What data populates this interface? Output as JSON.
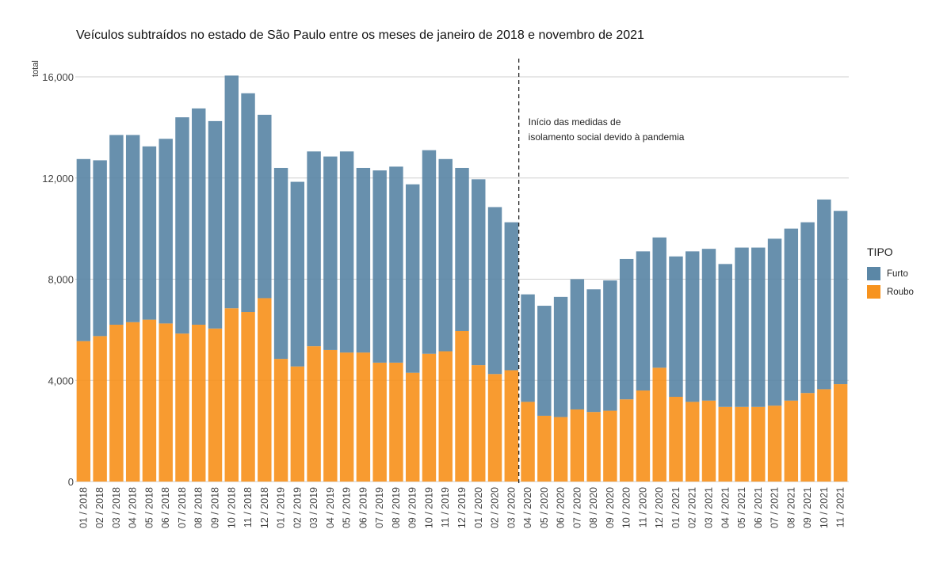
{
  "chart_data": {
    "type": "bar",
    "stacked": true,
    "title": "Veículos subtraídos no estado de São Paulo entre os meses de janeiro de 2018 e novembro de 2021",
    "xlabel": "",
    "ylabel": "total",
    "ylim": [
      0,
      16000
    ],
    "yticks": [
      0,
      4000,
      8000,
      12000,
      16000
    ],
    "ytick_labels": [
      "0",
      "4,000",
      "8,000",
      "12,000",
      "16,000"
    ],
    "grid": "horizontal",
    "legend": {
      "title": "TIPO",
      "placement": "right"
    },
    "categories": [
      "01 / 2018",
      "02 / 2018",
      "03 / 2018",
      "04 / 2018",
      "05 / 2018",
      "06 / 2018",
      "07 / 2018",
      "08 / 2018",
      "09 / 2018",
      "10 / 2018",
      "11 / 2018",
      "12 / 2018",
      "01 / 2019",
      "02 / 2019",
      "03 / 2019",
      "04 / 2019",
      "05 / 2019",
      "06 / 2019",
      "07 / 2019",
      "08 / 2019",
      "09 / 2019",
      "10 / 2019",
      "11 / 2019",
      "12 / 2019",
      "01 / 2020",
      "02 / 2020",
      "03 / 2020",
      "04 / 2020",
      "05 / 2020",
      "06 / 2020",
      "07 / 2020",
      "08 / 2020",
      "09 / 2020",
      "10 / 2020",
      "11 / 2020",
      "12 / 2020",
      "01 / 2021",
      "02 / 2021",
      "03 / 2021",
      "04 / 2021",
      "05 / 2021",
      "06 / 2021",
      "07 / 2021",
      "08 / 2021",
      "09 / 2021",
      "10 / 2021",
      "11 / 2021"
    ],
    "series": [
      {
        "name": "Roubo",
        "color": "#f7931e",
        "values": [
          5550,
          5750,
          6200,
          6300,
          6400,
          6250,
          5850,
          6200,
          6050,
          6850,
          6700,
          7250,
          4850,
          4550,
          5350,
          5200,
          5100,
          5100,
          4700,
          4700,
          4300,
          5050,
          5150,
          5950,
          4600,
          4250,
          4400,
          3150,
          2600,
          2550,
          2850,
          2750,
          2800,
          3250,
          3600,
          4500,
          3350,
          3150,
          3200,
          2950,
          2950,
          2950,
          3000,
          3200,
          3500,
          3650,
          3850
        ]
      },
      {
        "name": "Furto",
        "color": "#5b87a6",
        "values": [
          7200,
          6950,
          7500,
          7400,
          6850,
          7300,
          8550,
          8550,
          8200,
          9200,
          8650,
          7250,
          7550,
          7300,
          7700,
          7650,
          7950,
          7300,
          7600,
          7750,
          7450,
          8050,
          7600,
          6450,
          7350,
          6600,
          5850,
          4250,
          4350,
          4750,
          5150,
          4850,
          5150,
          5550,
          5500,
          5150,
          5550,
          5950,
          6000,
          5650,
          6300,
          6300,
          6600,
          6800,
          6750,
          7500,
          6850
        ]
      }
    ],
    "annotations": [
      {
        "x": "03 / 2020",
        "style": "dashed-vertical-line",
        "text_lines": [
          "Início das medidas de",
          "isolamento social devido à pandemia"
        ]
      }
    ]
  }
}
